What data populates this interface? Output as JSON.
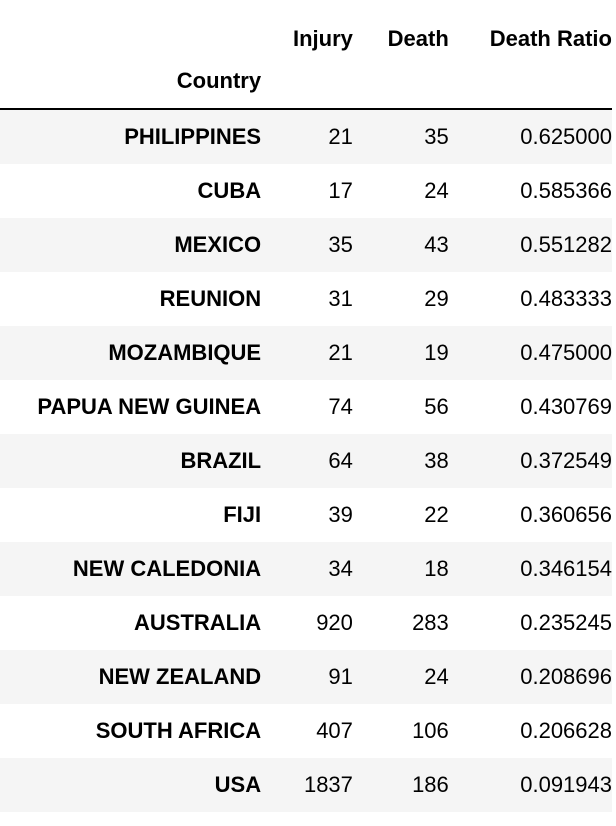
{
  "table": {
    "columns": {
      "injury": "Injury",
      "death": "Death",
      "death_ratio": "Death Ratio"
    },
    "index_name": "Country",
    "rows": [
      {
        "country": "PHILIPPINES",
        "injury": "21",
        "death": "35",
        "death_ratio": "0.625000"
      },
      {
        "country": "CUBA",
        "injury": "17",
        "death": "24",
        "death_ratio": "0.585366"
      },
      {
        "country": "MEXICO",
        "injury": "35",
        "death": "43",
        "death_ratio": "0.551282"
      },
      {
        "country": "REUNION",
        "injury": "31",
        "death": "29",
        "death_ratio": "0.483333"
      },
      {
        "country": "MOZAMBIQUE",
        "injury": "21",
        "death": "19",
        "death_ratio": "0.475000"
      },
      {
        "country": "PAPUA NEW GUINEA",
        "injury": "74",
        "death": "56",
        "death_ratio": "0.430769"
      },
      {
        "country": "BRAZIL",
        "injury": "64",
        "death": "38",
        "death_ratio": "0.372549"
      },
      {
        "country": "FIJI",
        "injury": "39",
        "death": "22",
        "death_ratio": "0.360656"
      },
      {
        "country": "NEW CALEDONIA",
        "injury": "34",
        "death": "18",
        "death_ratio": "0.346154"
      },
      {
        "country": "AUSTRALIA",
        "injury": "920",
        "death": "283",
        "death_ratio": "0.235245"
      },
      {
        "country": "NEW ZEALAND",
        "injury": "91",
        "death": "24",
        "death_ratio": "0.208696"
      },
      {
        "country": "SOUTH AFRICA",
        "injury": "407",
        "death": "106",
        "death_ratio": "0.206628"
      },
      {
        "country": "USA",
        "injury": "1837",
        "death": "186",
        "death_ratio": "0.091943"
      }
    ]
  }
}
